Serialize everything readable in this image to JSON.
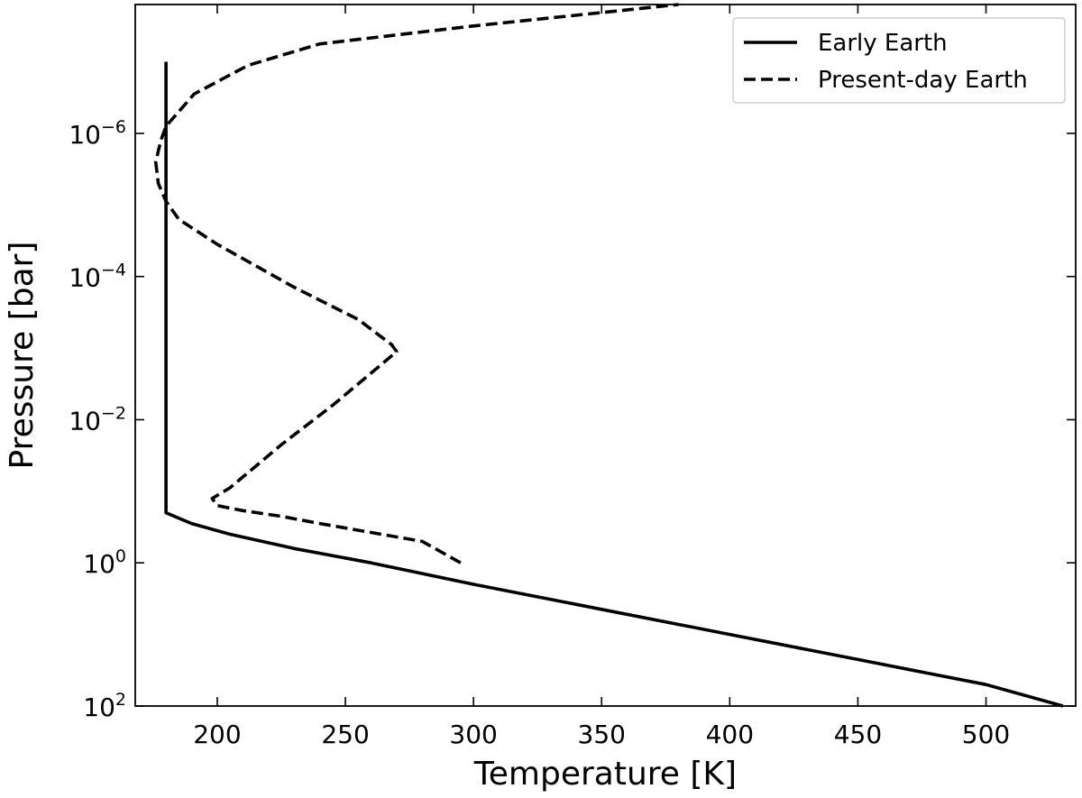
{
  "chart_data": {
    "type": "line",
    "xlabel": "Temperature [K]",
    "ylabel": "Pressure [bar]",
    "xlim": [
      168,
      535
    ],
    "ylim_log10": [
      2,
      -7.8
    ],
    "y_scale": "log",
    "y_inverted": true,
    "grid": false,
    "legend_position": "top-right",
    "x_ticks": [
      {
        "value": 200,
        "label": "200"
      },
      {
        "value": 250,
        "label": "250"
      },
      {
        "value": 300,
        "label": "300"
      },
      {
        "value": 350,
        "label": "350"
      },
      {
        "value": 400,
        "label": "400"
      },
      {
        "value": 450,
        "label": "450"
      },
      {
        "value": 500,
        "label": "500"
      }
    ],
    "y_ticks": [
      {
        "log10": -6,
        "base": "10",
        "exp": "−6"
      },
      {
        "log10": -4,
        "base": "10",
        "exp": "−4"
      },
      {
        "log10": -2,
        "base": "10",
        "exp": "−2"
      },
      {
        "log10": 0,
        "base": "10",
        "exp": "0"
      },
      {
        "log10": 2,
        "base": "10",
        "exp": "2"
      }
    ],
    "series": [
      {
        "name": "Early Earth",
        "style": "solid",
        "color": "#000000",
        "points": [
          [
            180,
            -7.0
          ],
          [
            180,
            -6.0
          ],
          [
            180,
            -5.0
          ],
          [
            180,
            -4.0
          ],
          [
            180,
            -3.0
          ],
          [
            180,
            -2.0
          ],
          [
            180,
            -1.0
          ],
          [
            180,
            -0.7
          ],
          [
            190,
            -0.55
          ],
          [
            205,
            -0.4
          ],
          [
            230,
            -0.2
          ],
          [
            260,
            0.0
          ],
          [
            300,
            0.3
          ],
          [
            350,
            0.65
          ],
          [
            400,
            1.0
          ],
          [
            450,
            1.35
          ],
          [
            500,
            1.7
          ],
          [
            530,
            2.0
          ]
        ]
      },
      {
        "name": "Present-day Earth",
        "style": "dashed",
        "color": "#000000",
        "points": [
          [
            295,
            0.0
          ],
          [
            290,
            -0.1
          ],
          [
            280,
            -0.3
          ],
          [
            240,
            -0.55
          ],
          [
            225,
            -0.65
          ],
          [
            210,
            -0.73
          ],
          [
            200,
            -0.8
          ],
          [
            198,
            -0.9
          ],
          [
            205,
            -1.05
          ],
          [
            225,
            -1.65
          ],
          [
            245,
            -2.2
          ],
          [
            270,
            -2.95
          ],
          [
            268,
            -3.05
          ],
          [
            255,
            -3.4
          ],
          [
            230,
            -3.85
          ],
          [
            200,
            -4.45
          ],
          [
            185,
            -4.8
          ],
          [
            180,
            -5.05
          ],
          [
            177,
            -5.3
          ],
          [
            176,
            -5.6
          ],
          [
            178,
            -5.9
          ],
          [
            180,
            -6.1
          ],
          [
            191,
            -6.55
          ],
          [
            212,
            -6.95
          ],
          [
            240,
            -7.25
          ],
          [
            300,
            -7.5
          ],
          [
            380,
            -7.8
          ]
        ]
      }
    ]
  }
}
